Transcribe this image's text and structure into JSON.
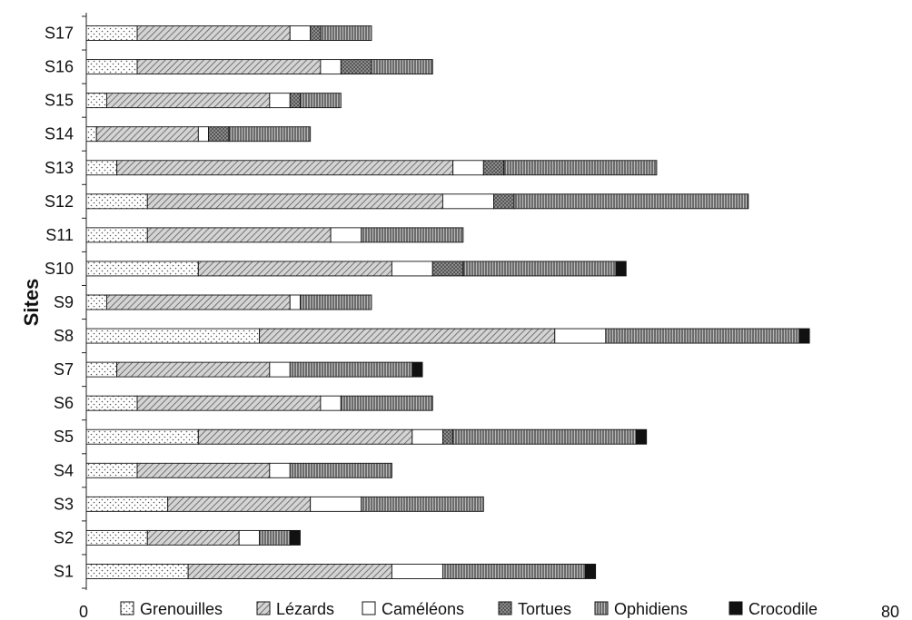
{
  "chart_data": {
    "type": "bar",
    "orientation": "horizontal",
    "stacked": true,
    "title": "",
    "xlabel": "",
    "ylabel": "Sites",
    "xlim": [
      0,
      80
    ],
    "x_ticks": [
      "0",
      "80"
    ],
    "grid": false,
    "legend_position": "bottom",
    "categories": [
      "S1",
      "S2",
      "S3",
      "S4",
      "S5",
      "S6",
      "S7",
      "S8",
      "S9",
      "S10",
      "S11",
      "S12",
      "S13",
      "S14",
      "S15",
      "S16",
      "S17"
    ],
    "series": [
      {
        "name": "Grenouilles",
        "fill": "dots",
        "color": "#ffffff",
        "values": [
          10,
          6,
          8,
          5,
          11,
          5,
          3,
          17,
          2,
          11,
          6,
          6,
          3,
          1,
          2,
          5,
          5
        ]
      },
      {
        "name": "Lézards",
        "fill": "diagonal",
        "color": "#c8c8c8",
        "values": [
          20,
          9,
          14,
          13,
          21,
          18,
          15,
          29,
          18,
          19,
          18,
          29,
          33,
          10,
          16,
          18,
          15
        ]
      },
      {
        "name": "Caméléons",
        "fill": "white",
        "color": "#ffffff",
        "values": [
          5,
          2,
          5,
          2,
          3,
          2,
          2,
          5,
          1,
          4,
          3,
          5,
          3,
          1,
          2,
          2,
          2
        ]
      },
      {
        "name": "Tortues",
        "fill": "crosshatch",
        "color": "#8c8c8c",
        "values": [
          0,
          0,
          0,
          0,
          1,
          0,
          0,
          0,
          0,
          3,
          0,
          2,
          2,
          2,
          1,
          3,
          1
        ]
      },
      {
        "name": "Ophidiens",
        "fill": "vertical",
        "color": "#a0a0a0",
        "values": [
          14,
          3,
          12,
          10,
          18,
          9,
          12,
          19,
          7,
          15,
          10,
          23,
          15,
          8,
          4,
          6,
          5
        ]
      },
      {
        "name": "Crocodile",
        "fill": "black",
        "color": "#111111",
        "values": [
          1,
          1,
          0,
          0,
          1,
          0,
          1,
          1,
          0,
          1,
          0,
          0,
          0,
          0,
          0,
          0,
          0
        ]
      }
    ]
  }
}
